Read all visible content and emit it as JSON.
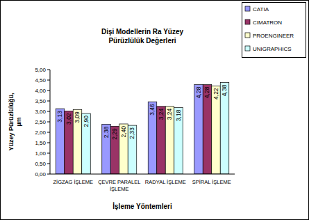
{
  "chart_data": {
    "type": "bar",
    "title": "Dişi Modellerin Ra Yüzey Pürüzlülük Değerleri",
    "x_label": "İşleme Yöntemleri",
    "y_label": "Yüzey Pürüzlülüğü, µm",
    "categories": [
      "ZİGZAG İŞLEME",
      "ÇEVRE PARALEL İŞLEME",
      "RADYAL İŞLEME",
      "SPİRAL İŞLEME"
    ],
    "series": [
      {
        "name": "CATIA",
        "color": "#9999ff",
        "values": [
          3.13,
          2.38,
          3.46,
          4.28
        ],
        "value_labels": [
          "3,13",
          "2,38",
          "3,46",
          "4,28"
        ]
      },
      {
        "name": "CIMATRON",
        "color": "#993366",
        "values": [
          3.02,
          2.29,
          3.24,
          4.28
        ],
        "value_labels": [
          "3,02",
          "2,29",
          "3,24",
          "4,28"
        ]
      },
      {
        "name": "PROENGINEER",
        "color": "#ffffcc",
        "values": [
          3.09,
          2.4,
          3.24,
          4.22
        ],
        "value_labels": [
          "3,09",
          "2,40",
          "3,24",
          "4,22"
        ]
      },
      {
        "name": "UNIGRAPHICS",
        "color": "#ccffff",
        "values": [
          2.9,
          2.33,
          3.18,
          4.38
        ],
        "value_labels": [
          "2,90",
          "2,33",
          "3,18",
          "4,38"
        ]
      }
    ],
    "ylim": [
      0,
      5
    ],
    "yticks": [
      {
        "value": 0,
        "label": "0,00"
      },
      {
        "value": 0.5,
        "label": "0,50"
      },
      {
        "value": 1,
        "label": "1,00"
      },
      {
        "value": 1.5,
        "label": "1,50"
      },
      {
        "value": 2,
        "label": "2,00"
      },
      {
        "value": 2.5,
        "label": "2,50"
      },
      {
        "value": 3,
        "label": "3,00"
      },
      {
        "value": 3.5,
        "label": "3,50"
      },
      {
        "value": 4,
        "label": "4,00"
      },
      {
        "value": 4.5,
        "label": "4,50"
      },
      {
        "value": 5,
        "label": "5,00"
      }
    ],
    "grid": false,
    "legend": "top-right",
    "data_labels": true
  }
}
